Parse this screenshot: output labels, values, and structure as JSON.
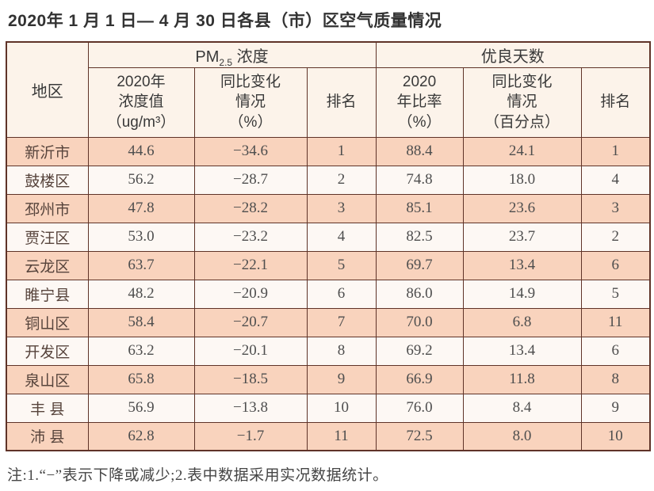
{
  "title": "2020年 1 月 1 日— 4 月 30 日各县（市）区空气质量情况",
  "table": {
    "region_header": "地区",
    "pm_group": {
      "prefix": "PM",
      "sub": "2.5",
      "suffix": " 浓度"
    },
    "good_days_group": "优良天数",
    "sub_headers": [
      "2020年\n浓度值\n（ug/m³）",
      "同比变化\n情况\n（%）",
      "排名",
      "2020\n年比率\n（%）",
      "同比变化\n情况\n（百分点）",
      "排名"
    ],
    "row_keys": [
      "region",
      "pm_value",
      "pm_change",
      "pm_rank",
      "gd_ratio",
      "gd_change",
      "gd_rank"
    ],
    "rows": [
      {
        "region": "新沂市",
        "pm_value": "44.6",
        "pm_change": "−34.6",
        "pm_rank": "1",
        "gd_ratio": "88.4",
        "gd_change": "24.1",
        "gd_rank": "1"
      },
      {
        "region": "鼓楼区",
        "pm_value": "56.2",
        "pm_change": "−28.7",
        "pm_rank": "2",
        "gd_ratio": "74.8",
        "gd_change": "18.0",
        "gd_rank": "4"
      },
      {
        "region": "邳州市",
        "pm_value": "47.8",
        "pm_change": "−28.2",
        "pm_rank": "3",
        "gd_ratio": "85.1",
        "gd_change": "23.6",
        "gd_rank": "3"
      },
      {
        "region": "贾汪区",
        "pm_value": "53.0",
        "pm_change": "−23.2",
        "pm_rank": "4",
        "gd_ratio": "82.5",
        "gd_change": "23.7",
        "gd_rank": "2"
      },
      {
        "region": "云龙区",
        "pm_value": "63.7",
        "pm_change": "−22.1",
        "pm_rank": "5",
        "gd_ratio": "69.7",
        "gd_change": "13.4",
        "gd_rank": "6"
      },
      {
        "region": "睢宁县",
        "pm_value": "48.2",
        "pm_change": "−20.9",
        "pm_rank": "6",
        "gd_ratio": "86.0",
        "gd_change": "14.9",
        "gd_rank": "5"
      },
      {
        "region": "铜山区",
        "pm_value": "58.4",
        "pm_change": "−20.7",
        "pm_rank": "7",
        "gd_ratio": "70.0",
        "gd_change": "6.8",
        "gd_rank": "11"
      },
      {
        "region": "开发区",
        "pm_value": "63.2",
        "pm_change": "−20.1",
        "pm_rank": "8",
        "gd_ratio": "69.2",
        "gd_change": "13.4",
        "gd_rank": "6"
      },
      {
        "region": "泉山区",
        "pm_value": "65.8",
        "pm_change": "−18.5",
        "pm_rank": "9",
        "gd_ratio": "66.9",
        "gd_change": "11.8",
        "gd_rank": "8"
      },
      {
        "region": "丰 县",
        "pm_value": "56.9",
        "pm_change": "−13.8",
        "pm_rank": "10",
        "gd_ratio": "76.0",
        "gd_change": "8.4",
        "gd_rank": "9"
      },
      {
        "region": "沛 县",
        "pm_value": "62.8",
        "pm_change": "−1.7",
        "pm_rank": "11",
        "gd_ratio": "72.5",
        "gd_change": "8.0",
        "gd_rank": "10"
      }
    ]
  },
  "note": "注:1.“−”表示下降或减少;2.表中数据采用实况数据统计。",
  "colors": {
    "border": "#5f3328",
    "header_bg": "#fcf3ea",
    "odd_row_bg": "#f9d3bd",
    "even_row_bg": "#fdf8f4",
    "text": "#4e4e4e"
  }
}
